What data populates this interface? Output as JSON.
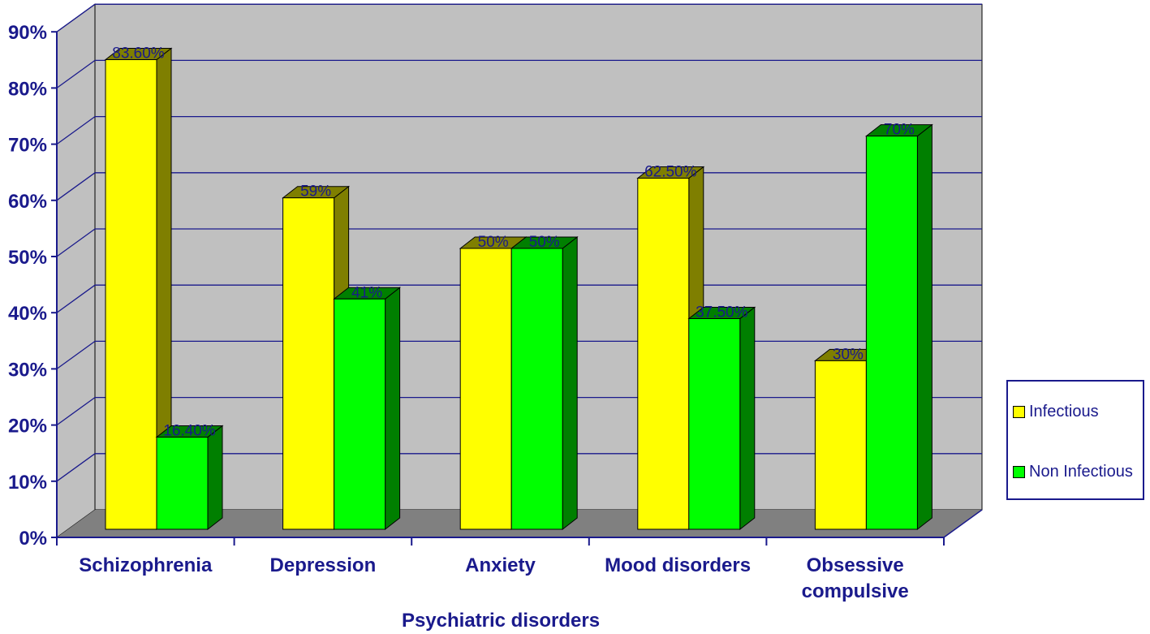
{
  "chart_data": {
    "type": "bar",
    "title": "",
    "xlabel": "Psychiatric disorders",
    "ylabel": "",
    "ylim": [
      0,
      90
    ],
    "yticks": [
      "0%",
      "10%",
      "20%",
      "30%",
      "40%",
      "50%",
      "60%",
      "70%",
      "80%",
      "90%"
    ],
    "categories": [
      [
        "Schizophrenia"
      ],
      [
        "Depression"
      ],
      [
        "Anxiety"
      ],
      [
        "Mood disorders"
      ],
      [
        "Obsessive",
        "compulsive"
      ]
    ],
    "series": [
      {
        "name": "Infectious",
        "color": "#ffff00",
        "side_color": "#7f7f00",
        "values": [
          83.6,
          59,
          50,
          62.5,
          30
        ],
        "labels": [
          "83.60%",
          "59%",
          "50%",
          "62.50%",
          "30%"
        ]
      },
      {
        "name": "Non Infectious",
        "color": "#00ff00",
        "side_color": "#007f00",
        "values": [
          16.4,
          41,
          50,
          37.5,
          70
        ],
        "labels": [
          "16.40%",
          "41%",
          "50%",
          "37.50%",
          "70%"
        ]
      }
    ],
    "legend_position": "right",
    "grid": true,
    "three_d": true,
    "colors": {
      "wall": "#c0c0c0",
      "floor": "#808080",
      "gridline": "#1a1a8c",
      "text": "#1a1a8c"
    }
  }
}
